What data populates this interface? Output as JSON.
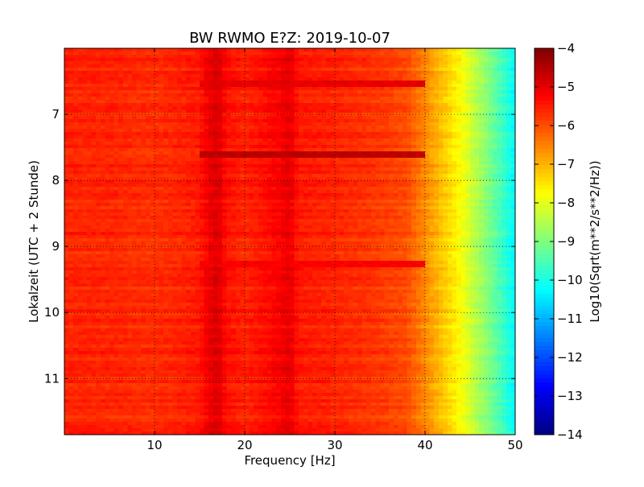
{
  "chart_data": {
    "type": "heatmap",
    "title": "BW RWMO E?Z: 2019-10-07",
    "xlabel": "Frequency [Hz]",
    "ylabel": "Lokalzeit (UTC + 2 Stunde)",
    "xlim": [
      0,
      50
    ],
    "ylim": [
      6.0,
      11.85
    ],
    "y_inverted": true,
    "x_ticks": [
      10,
      20,
      30,
      40,
      50
    ],
    "y_ticks": [
      7,
      8,
      9,
      10,
      11
    ],
    "grid": true,
    "colorbar": {
      "label": "Log10(Sqrt(m**2/s**2/Hz))",
      "range": [
        -14,
        -4
      ],
      "ticks": [
        -4,
        -5,
        -6,
        -7,
        -8,
        -9,
        -10,
        -11,
        -12,
        -13,
        -14
      ],
      "colormap": "jet"
    },
    "frequency_profile": {
      "frequencies": [
        0,
        5,
        10,
        15,
        16,
        17,
        18,
        20,
        24,
        25,
        26,
        30,
        35,
        38,
        40,
        42,
        44,
        46,
        48,
        50
      ],
      "values": [
        -5.6,
        -5.6,
        -5.7,
        -5.5,
        -5.1,
        -4.9,
        -5.4,
        -5.6,
        -5.2,
        -5.0,
        -5.5,
        -5.6,
        -5.8,
        -6.0,
        -6.6,
        -7.2,
        -7.8,
        -8.6,
        -9.4,
        -10.3
      ]
    },
    "strong_time_bands": [
      {
        "time": 6.55,
        "value": -5.0
      },
      {
        "time": 7.6,
        "value": -4.6
      },
      {
        "time": 9.25,
        "value": -5.2
      }
    ]
  }
}
